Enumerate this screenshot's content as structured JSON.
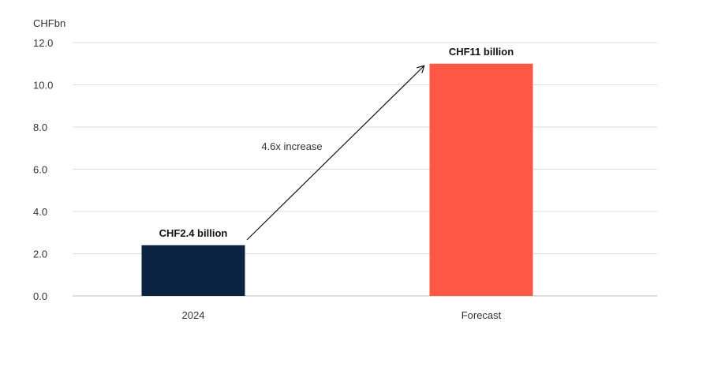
{
  "chart_data": {
    "type": "bar",
    "unit_label": "CHFbn",
    "categories": [
      "2024",
      "Forecast"
    ],
    "values": [
      2.4,
      11.0
    ],
    "data_labels": [
      "CHF2.4 billion",
      "CHF11 billion"
    ],
    "colors": [
      "#0b2341",
      "#ff5745"
    ],
    "ylim": [
      0,
      12
    ],
    "yticks": [
      "0.0",
      "2.0",
      "4.0",
      "6.0",
      "8.0",
      "10.0",
      "12.0"
    ],
    "grid": true,
    "annotation": "4.6x increase"
  }
}
